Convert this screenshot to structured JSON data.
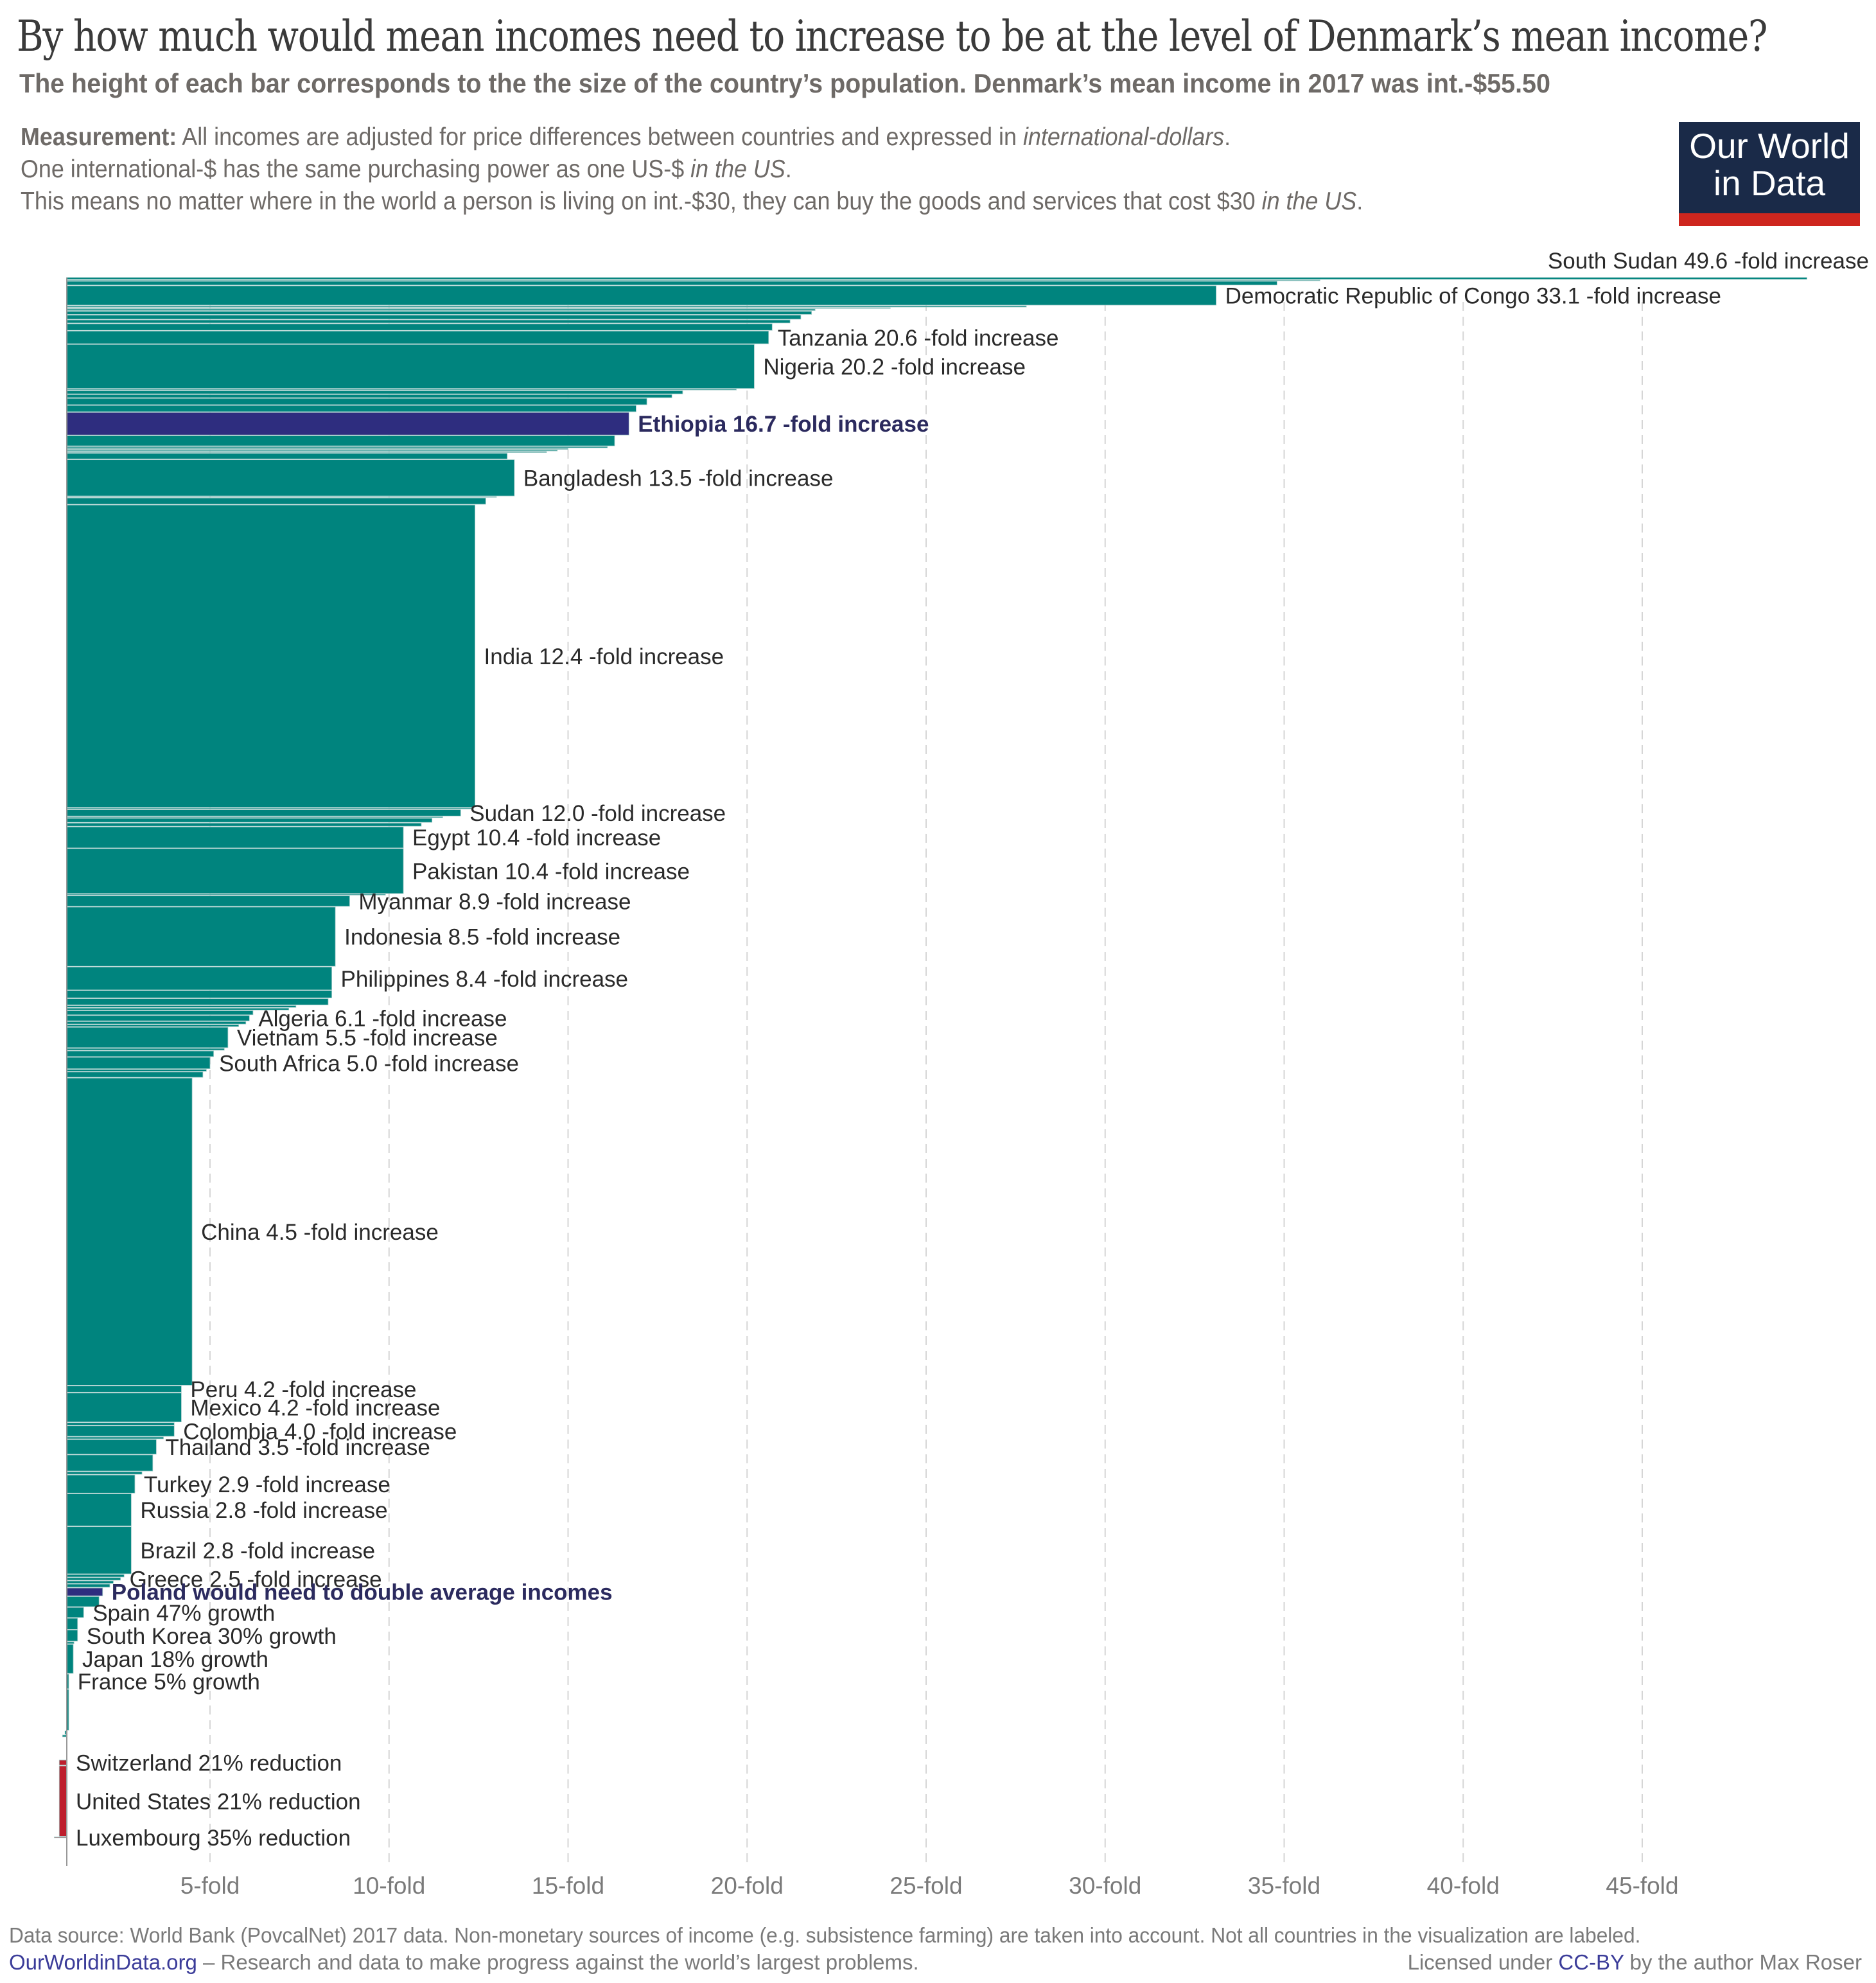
{
  "header": {
    "title": "By how much would mean incomes need to increase to be at the level of Denmark’s mean income?",
    "subtitle": "The height of each bar corresponds to the the size of the country’s population. Denmark’s mean income in 2017 was int.-$55.50",
    "measurement_label": "Measurement:",
    "measurement_line1_a": "All incomes are adjusted for price differences between countries and expressed in ",
    "measurement_line1_b": "international-dollars",
    "measurement_line1_c": ".",
    "measurement_line2_a": "One international-$ has the same purchasing power as one US-$ ",
    "measurement_line2_b": "in the US",
    "measurement_line2_c": ".",
    "measurement_line3_a": "This means no matter where in the world a person is living on int.-$30, they can buy the goods and services that cost $30 ",
    "measurement_line3_b": "in the US",
    "measurement_line3_c": "."
  },
  "logo": {
    "line1": "Our World",
    "line2": "in Data",
    "bg_color": "#1a2a48",
    "accent_color": "#ce261e"
  },
  "footer": {
    "source": "Data source: World Bank (PovcalNet) 2017 data. Non-monetary sources of income (e.g. subsistence farming) are taken into account. Not all countries in the visualization are labeled.",
    "site_link": "OurWorldinData.org",
    "tagline": " – Research and data to make progress against the world’s largest problems.",
    "license_prefix": "Licensed under ",
    "license_link": "CC-BY",
    "license_suffix": " by the author Max Roser"
  },
  "chart_data": {
    "type": "bar",
    "orientation": "horizontal",
    "title": "By how much would mean incomes need to increase to be at the level of Denmark’s mean income?",
    "xlabel": "",
    "ylabel": "",
    "x_unit": "fold increase (bar length = fold − 1)",
    "x_ticks": [
      5,
      10,
      15,
      20,
      25,
      30,
      35,
      40,
      45
    ],
    "x_tick_suffix": "-fold",
    "xlim": [
      1,
      50
    ],
    "grid": "vertical dashed",
    "colors": {
      "default": "#00847e",
      "highlight": "#2e2d7f",
      "reduction": "#be1e2d",
      "gap": "#9fc9c6"
    },
    "bars": [
      {
        "fold": 49.6,
        "weight": 0.8,
        "label": "South Sudan 49.6 -fold increase",
        "labelled": true
      },
      {
        "fold": 36.0,
        "weight": 0.4
      },
      {
        "fold": 34.8,
        "weight": 1.4
      },
      {
        "fold": 33.1,
        "weight": 6.3,
        "label": "Democratic Republic of Congo 33.1 -fold increase",
        "labelled": true
      },
      {
        "fold": 27.8,
        "weight": 0.6
      },
      {
        "fold": 24.0,
        "weight": 0.4
      },
      {
        "fold": 21.9,
        "weight": 0.7
      },
      {
        "fold": 21.8,
        "weight": 1.2
      },
      {
        "fold": 21.5,
        "weight": 1.5
      },
      {
        "fold": 21.2,
        "weight": 1.2
      },
      {
        "fold": 20.7,
        "weight": 2.3
      },
      {
        "fold": 20.6,
        "weight": 4.2,
        "label": "Tanzania 20.6 -fold increase",
        "labelled": true
      },
      {
        "fold": 20.2,
        "weight": 14.0,
        "label": "Nigeria 20.2 -fold increase",
        "labelled": true
      },
      {
        "fold": 19.7,
        "weight": 0.5
      },
      {
        "fold": 18.2,
        "weight": 1.2
      },
      {
        "fold": 17.9,
        "weight": 1.2
      },
      {
        "fold": 17.2,
        "weight": 2.2
      },
      {
        "fold": 16.9,
        "weight": 2.2
      },
      {
        "fold": 16.7,
        "weight": 7.3,
        "label": "Ethiopia 16.7 -fold increase",
        "labelled": true,
        "highlight": true
      },
      {
        "fold": 16.3,
        "weight": 3.4
      },
      {
        "fold": 16.1,
        "weight": 0.6
      },
      {
        "fold": 15.0,
        "weight": 0.5
      },
      {
        "fold": 14.7,
        "weight": 0.5
      },
      {
        "fold": 14.4,
        "weight": 0.5
      },
      {
        "fold": 13.3,
        "weight": 2.0
      },
      {
        "fold": 13.5,
        "weight": 11.6,
        "label": "Bangladesh 13.5 -fold increase",
        "labelled": true
      },
      {
        "fold": 13.0,
        "weight": 0.4
      },
      {
        "fold": 12.7,
        "weight": 2.2
      },
      {
        "fold": 12.4,
        "weight": 95.0,
        "label": "India 12.4 -fold increase",
        "labelled": true
      },
      {
        "fold": 12.3,
        "weight": 0.5
      },
      {
        "fold": 12.0,
        "weight": 2.2,
        "label": "Sudan 12.0 -fold increase",
        "labelled": true
      },
      {
        "fold": 11.5,
        "weight": 0.5
      },
      {
        "fold": 11.2,
        "weight": 1.5
      },
      {
        "fold": 10.9,
        "weight": 1.2
      },
      {
        "fold": 10.4,
        "weight": 6.8,
        "label": "Egypt 10.4 -fold increase",
        "labelled": true
      },
      {
        "fold": 10.4,
        "weight": 14.3,
        "label": "Pakistan 10.4 -fold increase",
        "labelled": true
      },
      {
        "fold": 9.9,
        "weight": 0.5
      },
      {
        "fold": 8.9,
        "weight": 3.5,
        "label": "Myanmar 8.9 -fold increase",
        "labelled": true
      },
      {
        "fold": 8.5,
        "weight": 18.8,
        "label": "Indonesia 8.5 -fold increase",
        "labelled": true
      },
      {
        "fold": 8.4,
        "weight": 7.4,
        "label": "Philippines 8.4 -fold increase",
        "labelled": true
      },
      {
        "fold": 8.4,
        "weight": 2.5
      },
      {
        "fold": 8.3,
        "weight": 2.2
      },
      {
        "fold": 7.4,
        "weight": 0.8
      },
      {
        "fold": 7.2,
        "weight": 0.8
      },
      {
        "fold": 6.2,
        "weight": 1.5
      },
      {
        "fold": 6.1,
        "weight": 1.9,
        "label": "Algeria 6.1 -fold increase",
        "labelled": true
      },
      {
        "fold": 6.0,
        "weight": 1.0
      },
      {
        "fold": 5.8,
        "weight": 0.8
      },
      {
        "fold": 5.5,
        "weight": 6.6,
        "label": "Vietnam 5.5 -fold increase",
        "labelled": true
      },
      {
        "fold": 5.4,
        "weight": 0.8
      },
      {
        "fold": 5.1,
        "weight": 2.0
      },
      {
        "fold": 5.0,
        "weight": 3.8,
        "label": "South Africa 5.0 -fold increase",
        "labelled": true
      },
      {
        "fold": 4.9,
        "weight": 0.8
      },
      {
        "fold": 4.8,
        "weight": 1.9
      },
      {
        "fold": 4.5,
        "weight": 96.5,
        "label": "China 4.5 -fold increase",
        "labelled": true
      },
      {
        "fold": 4.2,
        "weight": 2.2,
        "label": "Peru 4.2 -fold increase",
        "labelled": true
      },
      {
        "fold": 4.2,
        "weight": 9.3,
        "label": "Mexico 4.2 -fold increase",
        "labelled": true
      },
      {
        "fold": 4.0,
        "weight": 1.0
      },
      {
        "fold": 4.0,
        "weight": 3.5,
        "label": "Colombia 4.0 -fold increase",
        "labelled": true
      },
      {
        "fold": 3.7,
        "weight": 0.8
      },
      {
        "fold": 3.5,
        "weight": 4.8,
        "label": "Thailand 3.5 -fold increase",
        "labelled": true
      },
      {
        "fold": 3.4,
        "weight": 5.3
      },
      {
        "fold": 3.1,
        "weight": 1.0
      },
      {
        "fold": 2.9,
        "weight": 5.9,
        "label": "Turkey 2.9 -fold increase",
        "labelled": true
      },
      {
        "fold": 2.8,
        "weight": 10.3,
        "label": "Russia 2.8 -fold increase",
        "labelled": true
      },
      {
        "fold": 2.8,
        "weight": 15.0,
        "label": "Brazil 2.8 -fold increase",
        "labelled": true
      },
      {
        "fold": 2.6,
        "weight": 1.0
      },
      {
        "fold": 2.5,
        "weight": 1.0,
        "label": "Greece 2.5 -fold increase",
        "labelled": true
      },
      {
        "fold": 2.3,
        "weight": 1.0
      },
      {
        "fold": 2.2,
        "weight": 1.2
      },
      {
        "fold": 2.0,
        "weight": 2.7,
        "label": "Poland would need to double average incomes",
        "labelled": true,
        "highlight": true
      },
      {
        "fold": 1.9,
        "weight": 3.4
      },
      {
        "fold": 1.47,
        "weight": 3.4,
        "label": "Spain 47% growth",
        "labelled": true
      },
      {
        "fold": 1.3,
        "weight": 3.7
      },
      {
        "fold": 1.3,
        "weight": 3.7,
        "label": "South Korea 30% growth",
        "labelled": true
      },
      {
        "fold": 1.2,
        "weight": 0.8
      },
      {
        "fold": 1.18,
        "weight": 9.3,
        "label": "Japan 18% growth",
        "labelled": true
      },
      {
        "fold": 1.05,
        "weight": 4.8,
        "label": "France 5% growth",
        "labelled": true
      },
      {
        "fold": 1.0,
        "weight": 13.0
      },
      {
        "fold": 0.95,
        "weight": 1.3
      },
      {
        "fold": 0.88,
        "weight": 0.8
      },
      {
        "fold": 0.79,
        "weight": 2.0,
        "label": "Switzerland 21% reduction",
        "labelled": true,
        "reduction": true
      },
      {
        "fold": 0.79,
        "weight": 24.5,
        "label": "United States 21% reduction",
        "labelled": true,
        "reduction": true
      },
      {
        "fold": 0.65,
        "weight": 0.5,
        "label": "Luxembourg 35% reduction",
        "labelled": true,
        "reduction": true
      }
    ]
  }
}
